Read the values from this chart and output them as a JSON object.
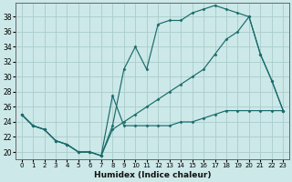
{
  "xlabel": "Humidex (Indice chaleur)",
  "bg_color": "#cce8e8",
  "grid_color": "#aacccc",
  "line_color": "#1a6b6b",
  "xlim": [
    -0.5,
    23.5
  ],
  "ylim": [
    19.0,
    39.8
  ],
  "xtick_labels": [
    "0",
    "1",
    "2",
    "3",
    "4",
    "5",
    "6",
    "7",
    "8",
    "9",
    "10",
    "11",
    "12",
    "13",
    "14",
    "15",
    "16",
    "17",
    "18",
    "19",
    "20",
    "21",
    "22",
    "23"
  ],
  "yticks": [
    20,
    22,
    24,
    26,
    28,
    30,
    32,
    34,
    36,
    38
  ],
  "line1": {
    "x": [
      0,
      1,
      2,
      3,
      4,
      5,
      6,
      7,
      8,
      9,
      10,
      11,
      12,
      13,
      14,
      15,
      16,
      17,
      18,
      19,
      20,
      21,
      22,
      23
    ],
    "y": [
      25.0,
      23.5,
      23.0,
      21.5,
      21.0,
      20.0,
      20.0,
      19.5,
      23.5,
      31.0,
      34.0,
      31.0,
      37.0,
      37.5,
      37.5,
      38.5,
      39.0,
      39.5,
      39.0,
      38.5,
      38.0,
      33.0,
      29.5,
      25.5
    ]
  },
  "line2": {
    "x": [
      0,
      1,
      2,
      3,
      4,
      5,
      6,
      7,
      8,
      9,
      10,
      11,
      12,
      13,
      14,
      15,
      16,
      17,
      18,
      19,
      20,
      21,
      22,
      23
    ],
    "y": [
      25.0,
      23.5,
      23.0,
      21.5,
      21.0,
      20.0,
      20.0,
      19.5,
      23.0,
      24.0,
      25.0,
      26.0,
      27.0,
      28.0,
      29.0,
      30.0,
      31.0,
      33.0,
      35.0,
      36.0,
      38.0,
      33.0,
      29.5,
      25.5
    ]
  },
  "line3": {
    "x": [
      0,
      1,
      2,
      3,
      4,
      5,
      6,
      7,
      8,
      9,
      10,
      11,
      12,
      13,
      14,
      15,
      16,
      17,
      18,
      19,
      20,
      21,
      22,
      23
    ],
    "y": [
      25.0,
      23.5,
      23.0,
      21.5,
      21.0,
      20.0,
      20.0,
      19.5,
      27.5,
      23.5,
      23.5,
      23.5,
      23.5,
      23.5,
      24.0,
      24.0,
      24.5,
      25.0,
      25.5,
      25.5,
      25.5,
      25.5,
      25.5,
      25.5
    ]
  }
}
